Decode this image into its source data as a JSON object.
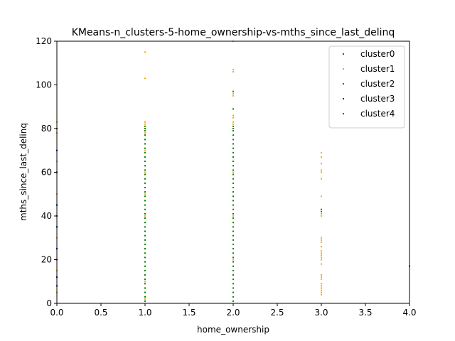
{
  "chart_data": {
    "type": "scatter",
    "title": "KMeans-n_clusters-5-home_ownership-vs-mths_since_last_delinq",
    "xlabel": "home_ownership",
    "ylabel": "mths_since_last_delinq",
    "xlim": [
      0.0,
      4.0
    ],
    "ylim": [
      0,
      120
    ],
    "xticks": [
      "0.0",
      "0.5",
      "1.0",
      "1.5",
      "2.0",
      "2.5",
      "3.0",
      "3.5",
      "4.0"
    ],
    "yticks": [
      "0",
      "20",
      "40",
      "60",
      "80",
      "100",
      "120"
    ],
    "legend_position": "top-right",
    "grid": false,
    "series": [
      {
        "name": "cluster0",
        "color": "#ff0000",
        "points": []
      },
      {
        "name": "cluster1",
        "color": "#ffa500",
        "points": [
          [
            0,
            83
          ],
          [
            0,
            78
          ],
          [
            0,
            65
          ],
          [
            0,
            50
          ],
          [
            0,
            30
          ],
          [
            0,
            15
          ],
          [
            0,
            5
          ],
          [
            1,
            115
          ],
          [
            1,
            103
          ],
          [
            1,
            83
          ],
          [
            1,
            82
          ],
          [
            1,
            78
          ],
          [
            1,
            70
          ],
          [
            1,
            60
          ],
          [
            1,
            50
          ],
          [
            1,
            40
          ],
          [
            1,
            25
          ],
          [
            1,
            10
          ],
          [
            1,
            2
          ],
          [
            2,
            120
          ],
          [
            2,
            107
          ],
          [
            2,
            106
          ],
          [
            2,
            96
          ],
          [
            2,
            95
          ],
          [
            2,
            86
          ],
          [
            2,
            85
          ],
          [
            2,
            83
          ],
          [
            2,
            82
          ],
          [
            2,
            60
          ],
          [
            2,
            40
          ],
          [
            2,
            20
          ],
          [
            2,
            5
          ],
          [
            3,
            69
          ],
          [
            3,
            67
          ],
          [
            3,
            64
          ],
          [
            3,
            61
          ],
          [
            3,
            60
          ],
          [
            3,
            57
          ],
          [
            3,
            49
          ],
          [
            3,
            41
          ],
          [
            3,
            40
          ],
          [
            3,
            30
          ],
          [
            3,
            29
          ],
          [
            3,
            28
          ],
          [
            3,
            26
          ],
          [
            3,
            24
          ],
          [
            3,
            23
          ],
          [
            3,
            22
          ],
          [
            3,
            21
          ],
          [
            3,
            20
          ],
          [
            3,
            18
          ],
          [
            3,
            13
          ],
          [
            3,
            12
          ],
          [
            3,
            11
          ],
          [
            3,
            9
          ],
          [
            3,
            8
          ],
          [
            3,
            7
          ],
          [
            3,
            6
          ],
          [
            3,
            5
          ],
          [
            3,
            4
          ]
        ]
      },
      {
        "name": "cluster2",
        "color": "#008000",
        "points": [
          [
            1,
            81
          ],
          [
            1,
            80
          ],
          [
            1,
            79
          ],
          [
            1,
            77
          ],
          [
            1,
            75
          ],
          [
            1,
            73
          ],
          [
            1,
            71
          ],
          [
            1,
            69
          ],
          [
            1,
            67
          ],
          [
            1,
            65
          ],
          [
            1,
            63
          ],
          [
            1,
            61
          ],
          [
            1,
            59
          ],
          [
            1,
            57
          ],
          [
            1,
            55
          ],
          [
            1,
            53
          ],
          [
            1,
            51
          ],
          [
            1,
            49
          ],
          [
            1,
            47
          ],
          [
            1,
            45
          ],
          [
            1,
            43
          ],
          [
            1,
            41
          ],
          [
            1,
            39
          ],
          [
            1,
            37
          ],
          [
            1,
            35
          ],
          [
            1,
            33
          ],
          [
            1,
            31
          ],
          [
            1,
            29
          ],
          [
            1,
            27
          ],
          [
            1,
            25
          ],
          [
            1,
            23
          ],
          [
            1,
            21
          ],
          [
            1,
            19
          ],
          [
            1,
            17
          ],
          [
            1,
            15
          ],
          [
            1,
            13
          ],
          [
            1,
            11
          ],
          [
            1,
            9
          ],
          [
            1,
            7
          ],
          [
            1,
            5
          ],
          [
            1,
            3
          ],
          [
            1,
            1
          ],
          [
            2,
            97
          ],
          [
            2,
            89
          ],
          [
            2,
            81
          ],
          [
            2,
            80
          ],
          [
            2,
            79
          ],
          [
            2,
            77
          ],
          [
            2,
            75
          ],
          [
            2,
            73
          ],
          [
            2,
            71
          ],
          [
            2,
            69
          ],
          [
            2,
            67
          ],
          [
            2,
            65
          ],
          [
            2,
            63
          ],
          [
            2,
            61
          ],
          [
            2,
            59
          ],
          [
            2,
            57
          ],
          [
            2,
            55
          ],
          [
            2,
            53
          ],
          [
            2,
            51
          ],
          [
            2,
            49
          ],
          [
            2,
            47
          ],
          [
            2,
            45
          ],
          [
            2,
            43
          ],
          [
            2,
            41
          ],
          [
            2,
            39
          ],
          [
            2,
            37
          ],
          [
            2,
            35
          ],
          [
            2,
            33
          ],
          [
            2,
            31
          ],
          [
            2,
            29
          ],
          [
            2,
            27
          ],
          [
            2,
            25
          ],
          [
            2,
            23
          ],
          [
            2,
            21
          ],
          [
            2,
            19
          ],
          [
            2,
            17
          ],
          [
            2,
            15
          ],
          [
            2,
            13
          ],
          [
            2,
            11
          ],
          [
            2,
            9
          ],
          [
            2,
            7
          ],
          [
            2,
            5
          ],
          [
            2,
            3
          ],
          [
            2,
            1
          ],
          [
            3,
            43
          ],
          [
            3,
            42
          ]
        ]
      },
      {
        "name": "cluster3",
        "color": "#0000cd",
        "points": [
          [
            0,
            70
          ],
          [
            0,
            60
          ],
          [
            0,
            45
          ],
          [
            0,
            35
          ],
          [
            0,
            25
          ],
          [
            0,
            12
          ]
        ]
      },
      {
        "name": "cluster4",
        "color": "#800080",
        "points": [
          [
            0,
            80
          ],
          [
            0,
            40
          ],
          [
            0,
            20
          ],
          [
            0,
            8
          ],
          [
            4,
            17
          ]
        ]
      }
    ]
  }
}
